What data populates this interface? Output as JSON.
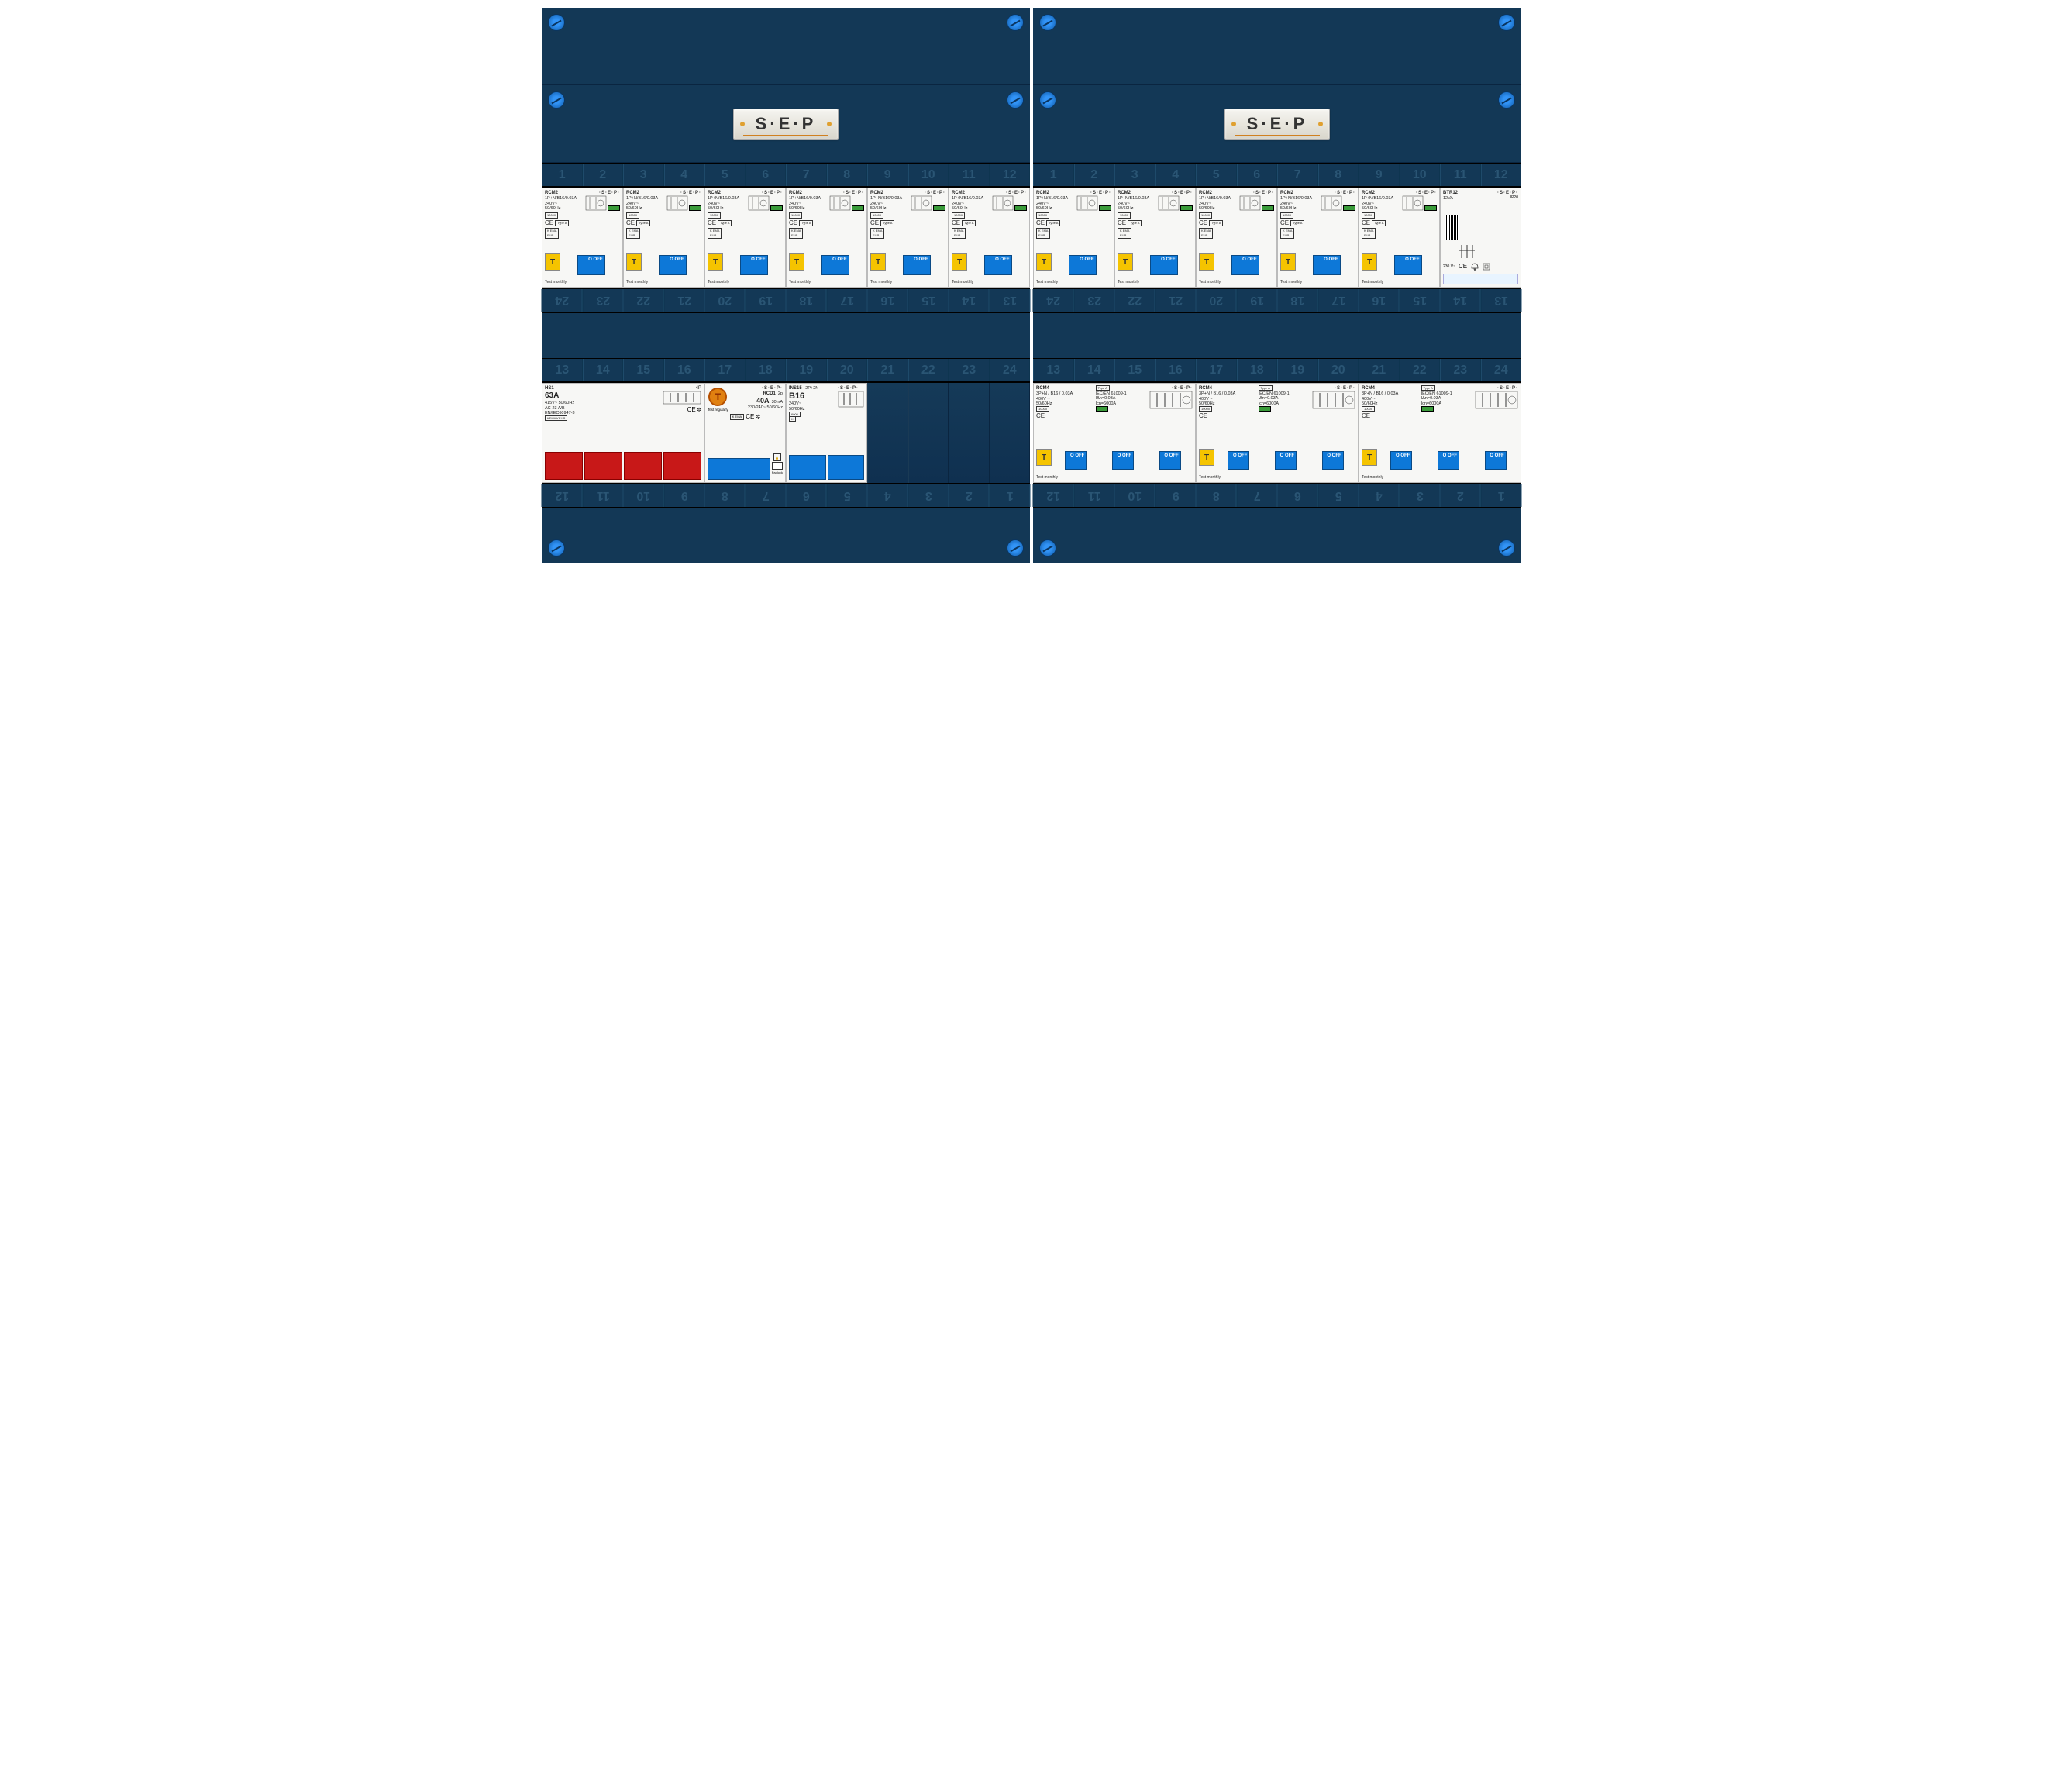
{
  "colors": {
    "enclosure_bg": "#133856",
    "screw_blue": "#1878d8",
    "toggle_blue": "#0d78d8",
    "test_yellow": "#f5c400",
    "main_switch_red": "#c81818",
    "module_white": "#f7f7f5",
    "indicator_green": "#3a9b3a",
    "label_text": "#2a5574"
  },
  "brand": {
    "text": "S·E·P"
  },
  "label_numbers": [
    1,
    2,
    3,
    4,
    5,
    6,
    7,
    8,
    9,
    10,
    11,
    12
  ],
  "label_numbers_row2_flipped": [
    13,
    14,
    15,
    16,
    17,
    18,
    19,
    20,
    21,
    22,
    23,
    24
  ],
  "label_numbers_row2": [
    13,
    14,
    15,
    16,
    17,
    18,
    19,
    20,
    21,
    22,
    23,
    24
  ],
  "label_numbers_bottom_flipped": [
    1,
    2,
    3,
    4,
    5,
    6,
    7,
    8,
    9,
    10,
    11,
    12
  ],
  "modules": {
    "rcm2": {
      "model": "RCM2",
      "rating_line": "1P+N/B16/0.03A",
      "voltage": "240V~",
      "freq": "50/60Hz",
      "marks": [
        "KEMA KEUR",
        "Type A",
        "IEC61009-1"
      ],
      "ce": "CE",
      "test_label": "T",
      "toggle_label": "O OFF",
      "footer": "Test monthly"
    },
    "btr12": {
      "model": "BTR12",
      "va": "12VA",
      "ip": "IP20",
      "voltage": "230 V~",
      "ce": "CE"
    },
    "hs1": {
      "model": "HS1",
      "rating": "63A",
      "poles": "4P",
      "extra": "415V~   50/60Hz",
      "std": "AC-23 A/B",
      "iec": "EN/IEC60947-3",
      "kema": "KEMA KEUR"
    },
    "rcd1": {
      "model": "RCD1",
      "poles": "2p",
      "rating": "40A",
      "sens": "30mA",
      "voltage": "230/240~ 50/60Hz",
      "test_label": "T",
      "test_reg": "Test regularly",
      "padlock": "Padlock"
    },
    "ins15": {
      "model": "INS15",
      "poles": "2P+2N",
      "curve": "B16",
      "voltage": "240V~",
      "freq": "50/60Hz"
    },
    "rcm4": {
      "model": "RCM4",
      "rating_line": "3P+N / B16 / 0.03A",
      "voltage": "400V ~",
      "freq": "50/60Hz",
      "type": "Type A",
      "std": "IEC/EN 61009-1",
      "idn": "IΔn=0.03A",
      "icn": "Icn=6000A",
      "test_label": "T",
      "toggle_label": "O OFF",
      "footer": "Test monthly"
    }
  },
  "layout": {
    "left_enclosure": {
      "row1_modules": [
        "rcm2",
        "rcm2",
        "rcm2",
        "rcm2",
        "rcm2",
        "rcm2"
      ],
      "row2_modules": [
        "hs1",
        "rcd1",
        "ins15",
        "blank",
        "blank",
        "blank",
        "blank"
      ]
    },
    "right_enclosure": {
      "row1_modules": [
        "rcm2",
        "rcm2",
        "rcm2",
        "rcm2",
        "rcm2",
        "btr12"
      ],
      "row2_modules": [
        "rcm4",
        "rcm4",
        "rcm4"
      ]
    }
  }
}
